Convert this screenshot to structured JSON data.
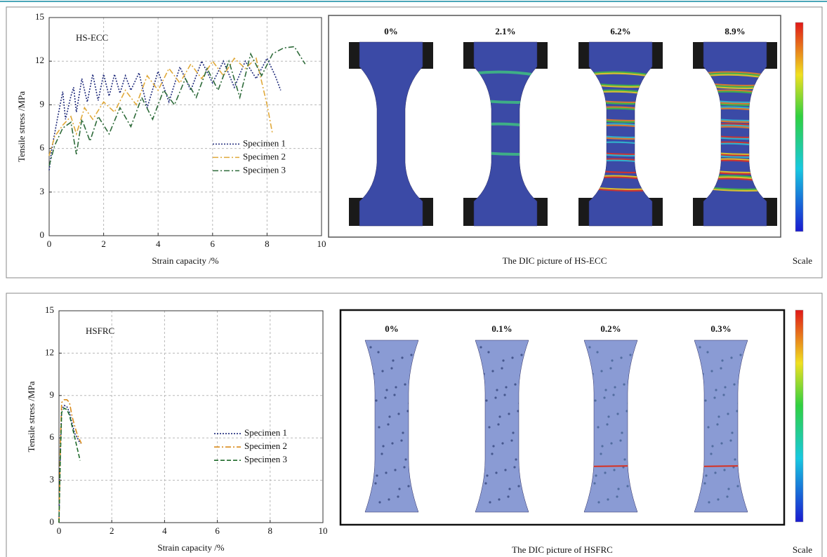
{
  "chart_data": [
    {
      "type": "line",
      "annotation": "HS-ECC",
      "xlabel": "Strain capacity /%",
      "ylabel": "Tensile stress /MPa",
      "xlim": [
        0,
        10
      ],
      "xticks": [
        0,
        2,
        4,
        6,
        8,
        10
      ],
      "ylim": [
        0,
        15
      ],
      "yticks": [
        0,
        3,
        6,
        9,
        12,
        15
      ],
      "grid": true,
      "legend": "center right",
      "series": [
        {
          "name": "Specimen 1",
          "color": "#1f2a7a",
          "dash": "dotted",
          "x": [
            0,
            0.1,
            0.3,
            0.5,
            0.6,
            0.8,
            0.9,
            1.0,
            1.2,
            1.4,
            1.6,
            1.8,
            2.0,
            2.2,
            2.4,
            2.6,
            2.8,
            3.0,
            3.3,
            3.6,
            4.0,
            4.4,
            4.8,
            5.2,
            5.6,
            6.0,
            6.4,
            6.8,
            7.2,
            7.6,
            8.0,
            8.3,
            8.5
          ],
          "values": [
            4.5,
            6,
            8,
            9.9,
            8,
            9.6,
            10.2,
            8.5,
            10.8,
            9.2,
            11.1,
            9.3,
            11.1,
            9.6,
            11.1,
            9.8,
            11.0,
            10.0,
            11.2,
            8.8,
            11.3,
            9.2,
            11.6,
            10,
            12,
            10.5,
            12,
            10.2,
            12,
            10.8,
            12.2,
            11,
            10
          ]
        },
        {
          "name": "Specimen 2",
          "color": "#e0a93a",
          "dash": "dashdot",
          "x": [
            0,
            0.2,
            0.5,
            0.8,
            1.0,
            1.3,
            1.6,
            2.0,
            2.4,
            2.8,
            3.2,
            3.6,
            4.0,
            4.4,
            4.8,
            5.2,
            5.6,
            6.0,
            6.4,
            6.8,
            7.2,
            7.6,
            8.0,
            8.2
          ],
          "values": [
            5.5,
            6.8,
            7.6,
            8.2,
            7,
            8.8,
            8,
            9.2,
            8.5,
            10,
            9,
            11,
            10,
            11.5,
            10.5,
            11.8,
            10.8,
            12,
            11,
            12.2,
            11.5,
            12.2,
            9,
            7
          ]
        },
        {
          "name": "Specimen 3",
          "color": "#2e6b3a",
          "dash": "dashdot",
          "x": [
            0,
            0.2,
            0.5,
            0.8,
            1.0,
            1.2,
            1.5,
            1.8,
            2.2,
            2.6,
            3.0,
            3.4,
            3.8,
            4.2,
            4.6,
            5.0,
            5.4,
            5.8,
            6.2,
            6.6,
            7.0,
            7.4,
            7.8,
            8.2,
            8.6,
            9.0,
            9.4
          ],
          "values": [
            4.8,
            6.2,
            7.4,
            7.8,
            5.6,
            8,
            6.5,
            8.2,
            7,
            8.8,
            7.5,
            9.5,
            8,
            10,
            9,
            10.8,
            9.5,
            11.5,
            10,
            12,
            9.5,
            12.5,
            11,
            12.5,
            12.9,
            13,
            11.8
          ]
        }
      ]
    },
    {
      "type": "line",
      "annotation": "HSFRC",
      "xlabel": "Strain capacity /%",
      "ylabel": "Tensile stress /MPa",
      "xlim": [
        0,
        10
      ],
      "xticks": [
        0,
        2,
        4,
        6,
        8,
        10
      ],
      "ylim": [
        0,
        15
      ],
      "yticks": [
        0,
        3,
        6,
        9,
        12,
        15
      ],
      "grid": true,
      "legend": "center right",
      "series": [
        {
          "name": "Specimen 1",
          "color": "#1f2a7a",
          "dash": "dotted",
          "x": [
            0,
            0.05,
            0.1,
            0.2,
            0.3,
            0.4,
            0.5,
            0.6,
            0.7,
            0.8
          ],
          "values": [
            0,
            5,
            8,
            8.3,
            8.2,
            7.8,
            7,
            6.3,
            6,
            5.6
          ]
        },
        {
          "name": "Specimen 2",
          "color": "#d98c1e",
          "dash": "dashdot",
          "x": [
            0,
            0.05,
            0.1,
            0.2,
            0.3,
            0.4,
            0.5,
            0.6,
            0.7,
            0.85
          ],
          "values": [
            0,
            5.5,
            8.5,
            8.7,
            8.7,
            8.5,
            7.5,
            6.8,
            6.2,
            5.6
          ]
        },
        {
          "name": "Specimen 3",
          "color": "#1e6a2a",
          "dash": "dashed",
          "x": [
            0,
            0.05,
            0.1,
            0.2,
            0.3,
            0.4,
            0.5,
            0.6,
            0.7,
            0.8
          ],
          "values": [
            0,
            4.5,
            7.8,
            8.1,
            8.0,
            7.6,
            6.8,
            6.0,
            5.2,
            4.4
          ]
        }
      ]
    }
  ],
  "dic_panels": [
    {
      "strains": [
        "0%",
        "2.1%",
        "6.2%",
        "8.9%"
      ],
      "strain_colors": [
        "#111111",
        "#7cac45",
        "#d2782a",
        "#c0282a"
      ],
      "caption": "The DIC picture of HS-ECC",
      "scale_label": "Scale"
    },
    {
      "strains": [
        "0%",
        "0.1%",
        "0.2%",
        "0.3%"
      ],
      "strain_colors": [
        "#111111",
        "#7cac45",
        "#d2782a",
        "#c0282a"
      ],
      "caption": "The DIC picture of HSFRC",
      "scale_label": "Scale"
    }
  ]
}
